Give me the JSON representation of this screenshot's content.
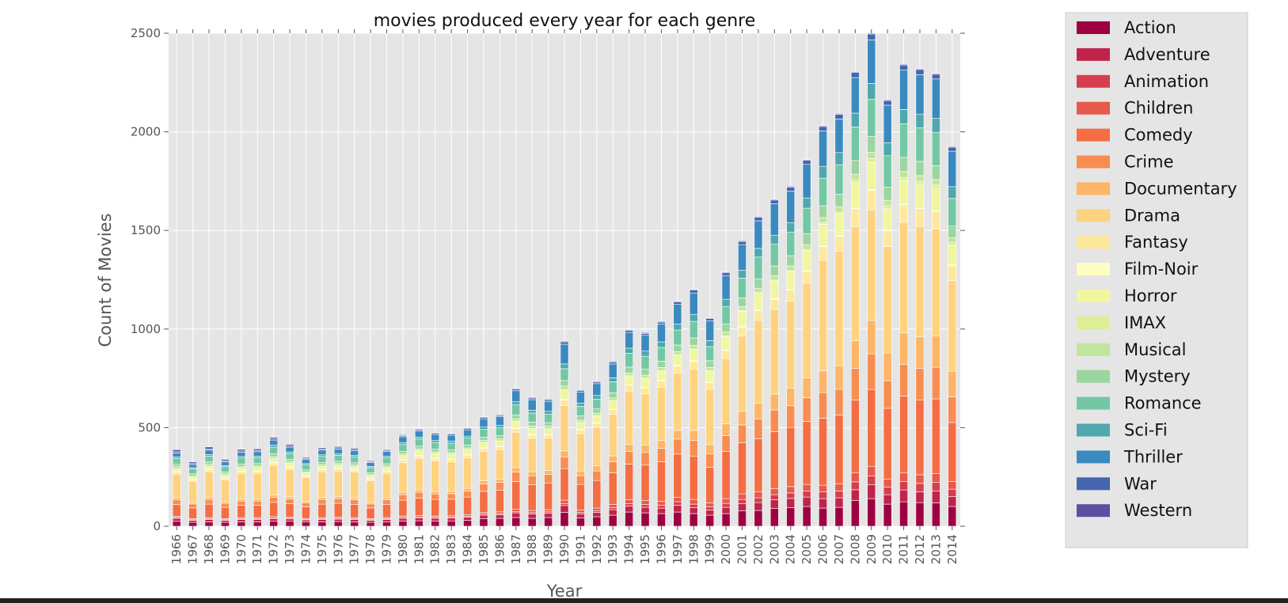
{
  "chart_data": {
    "type": "bar",
    "stacked": true,
    "title": "movies produced every year for each genre",
    "xlabel": "Year",
    "ylabel": "Count of Movies",
    "ylim": [
      0,
      2500
    ],
    "yticks": [
      0,
      500,
      1000,
      1500,
      2000,
      2500
    ],
    "grid": true,
    "legend_position": "outside-right",
    "categories": [
      "1966",
      "1967",
      "1968",
      "1969",
      "1970",
      "1971",
      "1972",
      "1973",
      "1974",
      "1975",
      "1976",
      "1977",
      "1978",
      "1979",
      "1980",
      "1981",
      "1982",
      "1983",
      "1984",
      "1985",
      "1986",
      "1987",
      "1988",
      "1989",
      "1990",
      "1991",
      "1992",
      "1993",
      "1994",
      "1995",
      "1996",
      "1997",
      "1998",
      "1999",
      "2000",
      "2001",
      "2002",
      "2003",
      "2004",
      "2005",
      "2006",
      "2007",
      "2008",
      "2009",
      "2010",
      "2011",
      "2012",
      "2013",
      "2014"
    ],
    "series": [
      {
        "name": "Action",
        "color": "#9e0142",
        "values": [
          25,
          20,
          22,
          20,
          22,
          22,
          25,
          25,
          22,
          22,
          24,
          22,
          20,
          22,
          26,
          28,
          26,
          27,
          30,
          38,
          40,
          44,
          40,
          44,
          70,
          42,
          48,
          56,
          72,
          68,
          64,
          72,
          64,
          56,
          64,
          78,
          80,
          90,
          95,
          100,
          92,
          96,
          130,
          140,
          112,
          124,
          120,
          118,
          100
        ]
      },
      {
        "name": "Adventure",
        "color": "#c0244a",
        "values": [
          15,
          10,
          12,
          10,
          12,
          12,
          14,
          12,
          10,
          12,
          12,
          12,
          10,
          12,
          14,
          14,
          14,
          14,
          16,
          18,
          18,
          24,
          22,
          22,
          35,
          20,
          22,
          28,
          30,
          28,
          28,
          35,
          30,
          26,
          32,
          36,
          40,
          44,
          46,
          48,
          48,
          48,
          55,
          70,
          48,
          60,
          55,
          60,
          50
        ]
      },
      {
        "name": "Animation",
        "color": "#d53e4f",
        "values": [
          4,
          3,
          4,
          3,
          4,
          4,
          4,
          4,
          3,
          4,
          4,
          4,
          3,
          4,
          5,
          5,
          5,
          5,
          5,
          6,
          6,
          7,
          7,
          7,
          10,
          8,
          9,
          11,
          13,
          14,
          15,
          17,
          18,
          16,
          20,
          22,
          24,
          26,
          28,
          30,
          34,
          34,
          40,
          44,
          38,
          42,
          42,
          44,
          38
        ]
      },
      {
        "name": "Children",
        "color": "#e55a4b",
        "values": [
          6,
          5,
          6,
          5,
          6,
          6,
          6,
          6,
          5,
          6,
          6,
          6,
          5,
          6,
          7,
          7,
          7,
          7,
          7,
          9,
          9,
          12,
          11,
          11,
          17,
          12,
          13,
          16,
          20,
          20,
          20,
          22,
          24,
          20,
          24,
          28,
          30,
          30,
          32,
          34,
          34,
          36,
          45,
          50,
          40,
          44,
          44,
          44,
          38
        ]
      },
      {
        "name": "Comedy",
        "color": "#f46d43",
        "values": [
          60,
          55,
          68,
          58,
          62,
          62,
          72,
          68,
          58,
          68,
          70,
          66,
          55,
          66,
          80,
          88,
          84,
          84,
          90,
          106,
          110,
          140,
          130,
          134,
          160,
          130,
          140,
          160,
          180,
          180,
          200,
          220,
          220,
          180,
          240,
          260,
          270,
          290,
          300,
          320,
          340,
          350,
          370,
          390,
          360,
          390,
          380,
          380,
          300
        ]
      },
      {
        "name": "Crime",
        "color": "#f88d52",
        "values": [
          25,
          20,
          24,
          20,
          22,
          22,
          26,
          24,
          20,
          24,
          24,
          24,
          20,
          24,
          28,
          30,
          28,
          28,
          30,
          38,
          40,
          48,
          46,
          44,
          60,
          44,
          48,
          56,
          64,
          64,
          68,
          76,
          80,
          70,
          80,
          90,
          100,
          110,
          110,
          120,
          130,
          130,
          160,
          180,
          140,
          160,
          160,
          160,
          130
        ]
      },
      {
        "name": "Documentary",
        "color": "#fdb567",
        "values": [
          10,
          8,
          10,
          8,
          10,
          10,
          12,
          10,
          8,
          10,
          10,
          10,
          8,
          10,
          12,
          12,
          12,
          12,
          14,
          16,
          16,
          22,
          20,
          20,
          30,
          24,
          26,
          30,
          36,
          38,
          40,
          44,
          50,
          46,
          60,
          70,
          80,
          80,
          90,
          100,
          110,
          120,
          140,
          170,
          140,
          160,
          160,
          160,
          130
        ]
      },
      {
        "name": "Drama",
        "color": "#fed27f",
        "values": [
          120,
          105,
          130,
          110,
          130,
          130,
          150,
          140,
          120,
          130,
          130,
          130,
          110,
          125,
          150,
          160,
          155,
          150,
          155,
          150,
          150,
          180,
          170,
          165,
          230,
          190,
          195,
          210,
          270,
          260,
          270,
          290,
          310,
          280,
          330,
          380,
          420,
          430,
          440,
          480,
          560,
          580,
          580,
          560,
          540,
          560,
          560,
          540,
          460
        ]
      },
      {
        "name": "Fantasy",
        "color": "#fee89b",
        "values": [
          10,
          8,
          10,
          8,
          10,
          10,
          12,
          10,
          8,
          10,
          10,
          10,
          8,
          10,
          12,
          12,
          12,
          12,
          14,
          14,
          14,
          18,
          16,
          16,
          28,
          18,
          20,
          24,
          30,
          30,
          32,
          36,
          40,
          36,
          40,
          46,
          50,
          50,
          56,
          60,
          70,
          76,
          90,
          100,
          80,
          90,
          90,
          90,
          75
        ]
      },
      {
        "name": "Film-Noir",
        "color": "#fefec0",
        "values": [
          2,
          2,
          2,
          2,
          2,
          2,
          2,
          2,
          2,
          2,
          2,
          2,
          2,
          2,
          2,
          2,
          2,
          2,
          2,
          2,
          2,
          2,
          2,
          2,
          3,
          2,
          2,
          2,
          2,
          2,
          2,
          3,
          3,
          3,
          3,
          3,
          3,
          3,
          3,
          3,
          3,
          3,
          3,
          4,
          3,
          3,
          3,
          3,
          3
        ]
      },
      {
        "name": "Horror",
        "color": "#f0f79e",
        "values": [
          15,
          12,
          16,
          14,
          16,
          18,
          20,
          18,
          14,
          16,
          18,
          16,
          14,
          16,
          22,
          26,
          24,
          24,
          26,
          28,
          28,
          36,
          32,
          30,
          50,
          36,
          38,
          44,
          46,
          48,
          50,
          54,
          60,
          56,
          70,
          78,
          84,
          90,
          90,
          100,
          110,
          110,
          130,
          140,
          110,
          120,
          120,
          115,
          100
        ]
      },
      {
        "name": "IMAX",
        "color": "#dcef96",
        "values": [
          0,
          0,
          0,
          0,
          0,
          0,
          0,
          0,
          0,
          0,
          0,
          0,
          0,
          0,
          0,
          0,
          0,
          0,
          0,
          0,
          0,
          0,
          0,
          0,
          0,
          0,
          0,
          0,
          0,
          0,
          0,
          0,
          0,
          0,
          2,
          3,
          4,
          5,
          6,
          8,
          8,
          10,
          12,
          16,
          14,
          16,
          16,
          16,
          14
        ]
      },
      {
        "name": "Musical",
        "color": "#c2e59d",
        "values": [
          10,
          8,
          10,
          8,
          8,
          8,
          10,
          8,
          6,
          8,
          8,
          8,
          6,
          8,
          8,
          8,
          8,
          8,
          8,
          10,
          10,
          12,
          12,
          12,
          18,
          12,
          12,
          14,
          14,
          14,
          16,
          16,
          18,
          16,
          20,
          20,
          22,
          22,
          24,
          24,
          26,
          28,
          30,
          32,
          28,
          30,
          28,
          28,
          24
        ]
      },
      {
        "name": "Mystery",
        "color": "#9dd5a0",
        "values": [
          12,
          10,
          12,
          10,
          12,
          12,
          14,
          12,
          10,
          12,
          12,
          12,
          10,
          12,
          14,
          14,
          14,
          14,
          14,
          16,
          16,
          20,
          20,
          18,
          28,
          22,
          22,
          26,
          30,
          30,
          32,
          34,
          38,
          34,
          40,
          44,
          48,
          50,
          52,
          56,
          60,
          62,
          70,
          80,
          66,
          72,
          72,
          70,
          60
        ]
      },
      {
        "name": "Romance",
        "color": "#74c7a5",
        "values": [
          30,
          25,
          30,
          26,
          30,
          30,
          34,
          30,
          26,
          30,
          30,
          30,
          26,
          30,
          34,
          36,
          34,
          34,
          36,
          40,
          40,
          50,
          46,
          44,
          60,
          48,
          50,
          56,
          70,
          66,
          70,
          76,
          84,
          72,
          90,
          100,
          110,
          110,
          120,
          130,
          140,
          150,
          170,
          190,
          160,
          170,
          170,
          170,
          140
        ]
      },
      {
        "name": "Sci-Fi",
        "color": "#4fa8ae",
        "values": [
          8,
          6,
          8,
          6,
          8,
          8,
          10,
          8,
          6,
          8,
          8,
          8,
          6,
          8,
          10,
          10,
          10,
          10,
          10,
          12,
          12,
          16,
          14,
          14,
          24,
          16,
          18,
          20,
          26,
          26,
          28,
          30,
          34,
          30,
          36,
          40,
          44,
          46,
          48,
          52,
          60,
          62,
          70,
          80,
          66,
          72,
          70,
          70,
          60
        ]
      },
      {
        "name": "Thriller",
        "color": "#3a8ac0",
        "values": [
          20,
          16,
          22,
          18,
          22,
          22,
          26,
          24,
          20,
          24,
          24,
          24,
          20,
          24,
          30,
          32,
          30,
          30,
          32,
          42,
          44,
          56,
          54,
          50,
          100,
          56,
          60,
          70,
          80,
          80,
          90,
          100,
          110,
          100,
          120,
          130,
          140,
          160,
          160,
          170,
          180,
          170,
          180,
          220,
          190,
          200,
          200,
          200,
          180
        ]
      },
      {
        "name": "War",
        "color": "#4565b0",
        "values": [
          6,
          5,
          6,
          5,
          6,
          6,
          6,
          6,
          5,
          6,
          6,
          6,
          5,
          6,
          6,
          6,
          6,
          6,
          6,
          6,
          6,
          8,
          8,
          8,
          12,
          8,
          8,
          10,
          10,
          10,
          10,
          12,
          14,
          12,
          14,
          16,
          18,
          18,
          20,
          20,
          22,
          24,
          26,
          30,
          24,
          26,
          26,
          24,
          20
        ]
      },
      {
        "name": "Western",
        "color": "#5e4fa2",
        "values": [
          10,
          8,
          10,
          8,
          8,
          8,
          8,
          8,
          6,
          6,
          6,
          6,
          4,
          4,
          4,
          4,
          4,
          4,
          4,
          4,
          4,
          4,
          4,
          4,
          4,
          4,
          4,
          4,
          4,
          4,
          4,
          4,
          4,
          4,
          4,
          4,
          4,
          4,
          4,
          4,
          4,
          4,
          4,
          4,
          4,
          4,
          4,
          4,
          4
        ]
      }
    ]
  }
}
